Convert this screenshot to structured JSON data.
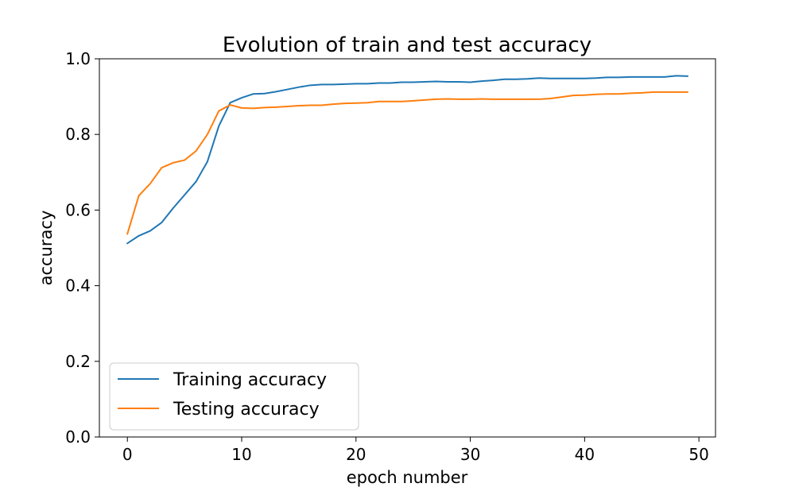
{
  "chart_data": {
    "type": "line",
    "title": "Evolution of train and test accuracy",
    "xlabel": "epoch number",
    "ylabel": "accuracy",
    "xlim": [
      -2.45,
      51.45
    ],
    "ylim": [
      0.0,
      1.0
    ],
    "xticks": [
      0,
      10,
      20,
      30,
      40,
      50
    ],
    "yticks": [
      0.0,
      0.2,
      0.4,
      0.6,
      0.8,
      1.0
    ],
    "ytick_labels": [
      "0.0",
      "0.2",
      "0.4",
      "0.6",
      "0.8",
      "1.0"
    ],
    "grid": false,
    "legend_position": "lower-left",
    "x": [
      0,
      1,
      2,
      3,
      4,
      5,
      6,
      7,
      8,
      9,
      10,
      11,
      12,
      13,
      14,
      15,
      16,
      17,
      18,
      19,
      20,
      21,
      22,
      23,
      24,
      25,
      26,
      27,
      28,
      29,
      30,
      31,
      32,
      33,
      34,
      35,
      36,
      37,
      38,
      39,
      40,
      41,
      42,
      43,
      44,
      45,
      46,
      47,
      48,
      49
    ],
    "series": [
      {
        "name": "Training accuracy",
        "color": "#1f77b4",
        "values": [
          0.512,
          0.532,
          0.545,
          0.567,
          0.605,
          0.64,
          0.675,
          0.728,
          0.822,
          0.884,
          0.897,
          0.907,
          0.908,
          0.913,
          0.919,
          0.925,
          0.93,
          0.932,
          0.932,
          0.933,
          0.934,
          0.934,
          0.936,
          0.936,
          0.938,
          0.938,
          0.939,
          0.94,
          0.939,
          0.939,
          0.938,
          0.941,
          0.943,
          0.946,
          0.946,
          0.947,
          0.949,
          0.948,
          0.948,
          0.948,
          0.948,
          0.949,
          0.951,
          0.951,
          0.952,
          0.952,
          0.952,
          0.952,
          0.955,
          0.954
        ]
      },
      {
        "name": "Testing accuracy",
        "color": "#ff7f0e",
        "values": [
          0.537,
          0.638,
          0.67,
          0.712,
          0.725,
          0.732,
          0.756,
          0.8,
          0.862,
          0.878,
          0.87,
          0.869,
          0.871,
          0.872,
          0.874,
          0.876,
          0.877,
          0.877,
          0.88,
          0.882,
          0.883,
          0.884,
          0.887,
          0.887,
          0.887,
          0.889,
          0.891,
          0.893,
          0.894,
          0.893,
          0.893,
          0.894,
          0.893,
          0.893,
          0.893,
          0.893,
          0.893,
          0.895,
          0.899,
          0.903,
          0.904,
          0.906,
          0.907,
          0.907,
          0.909,
          0.91,
          0.912,
          0.912,
          0.912,
          0.912
        ]
      }
    ]
  }
}
